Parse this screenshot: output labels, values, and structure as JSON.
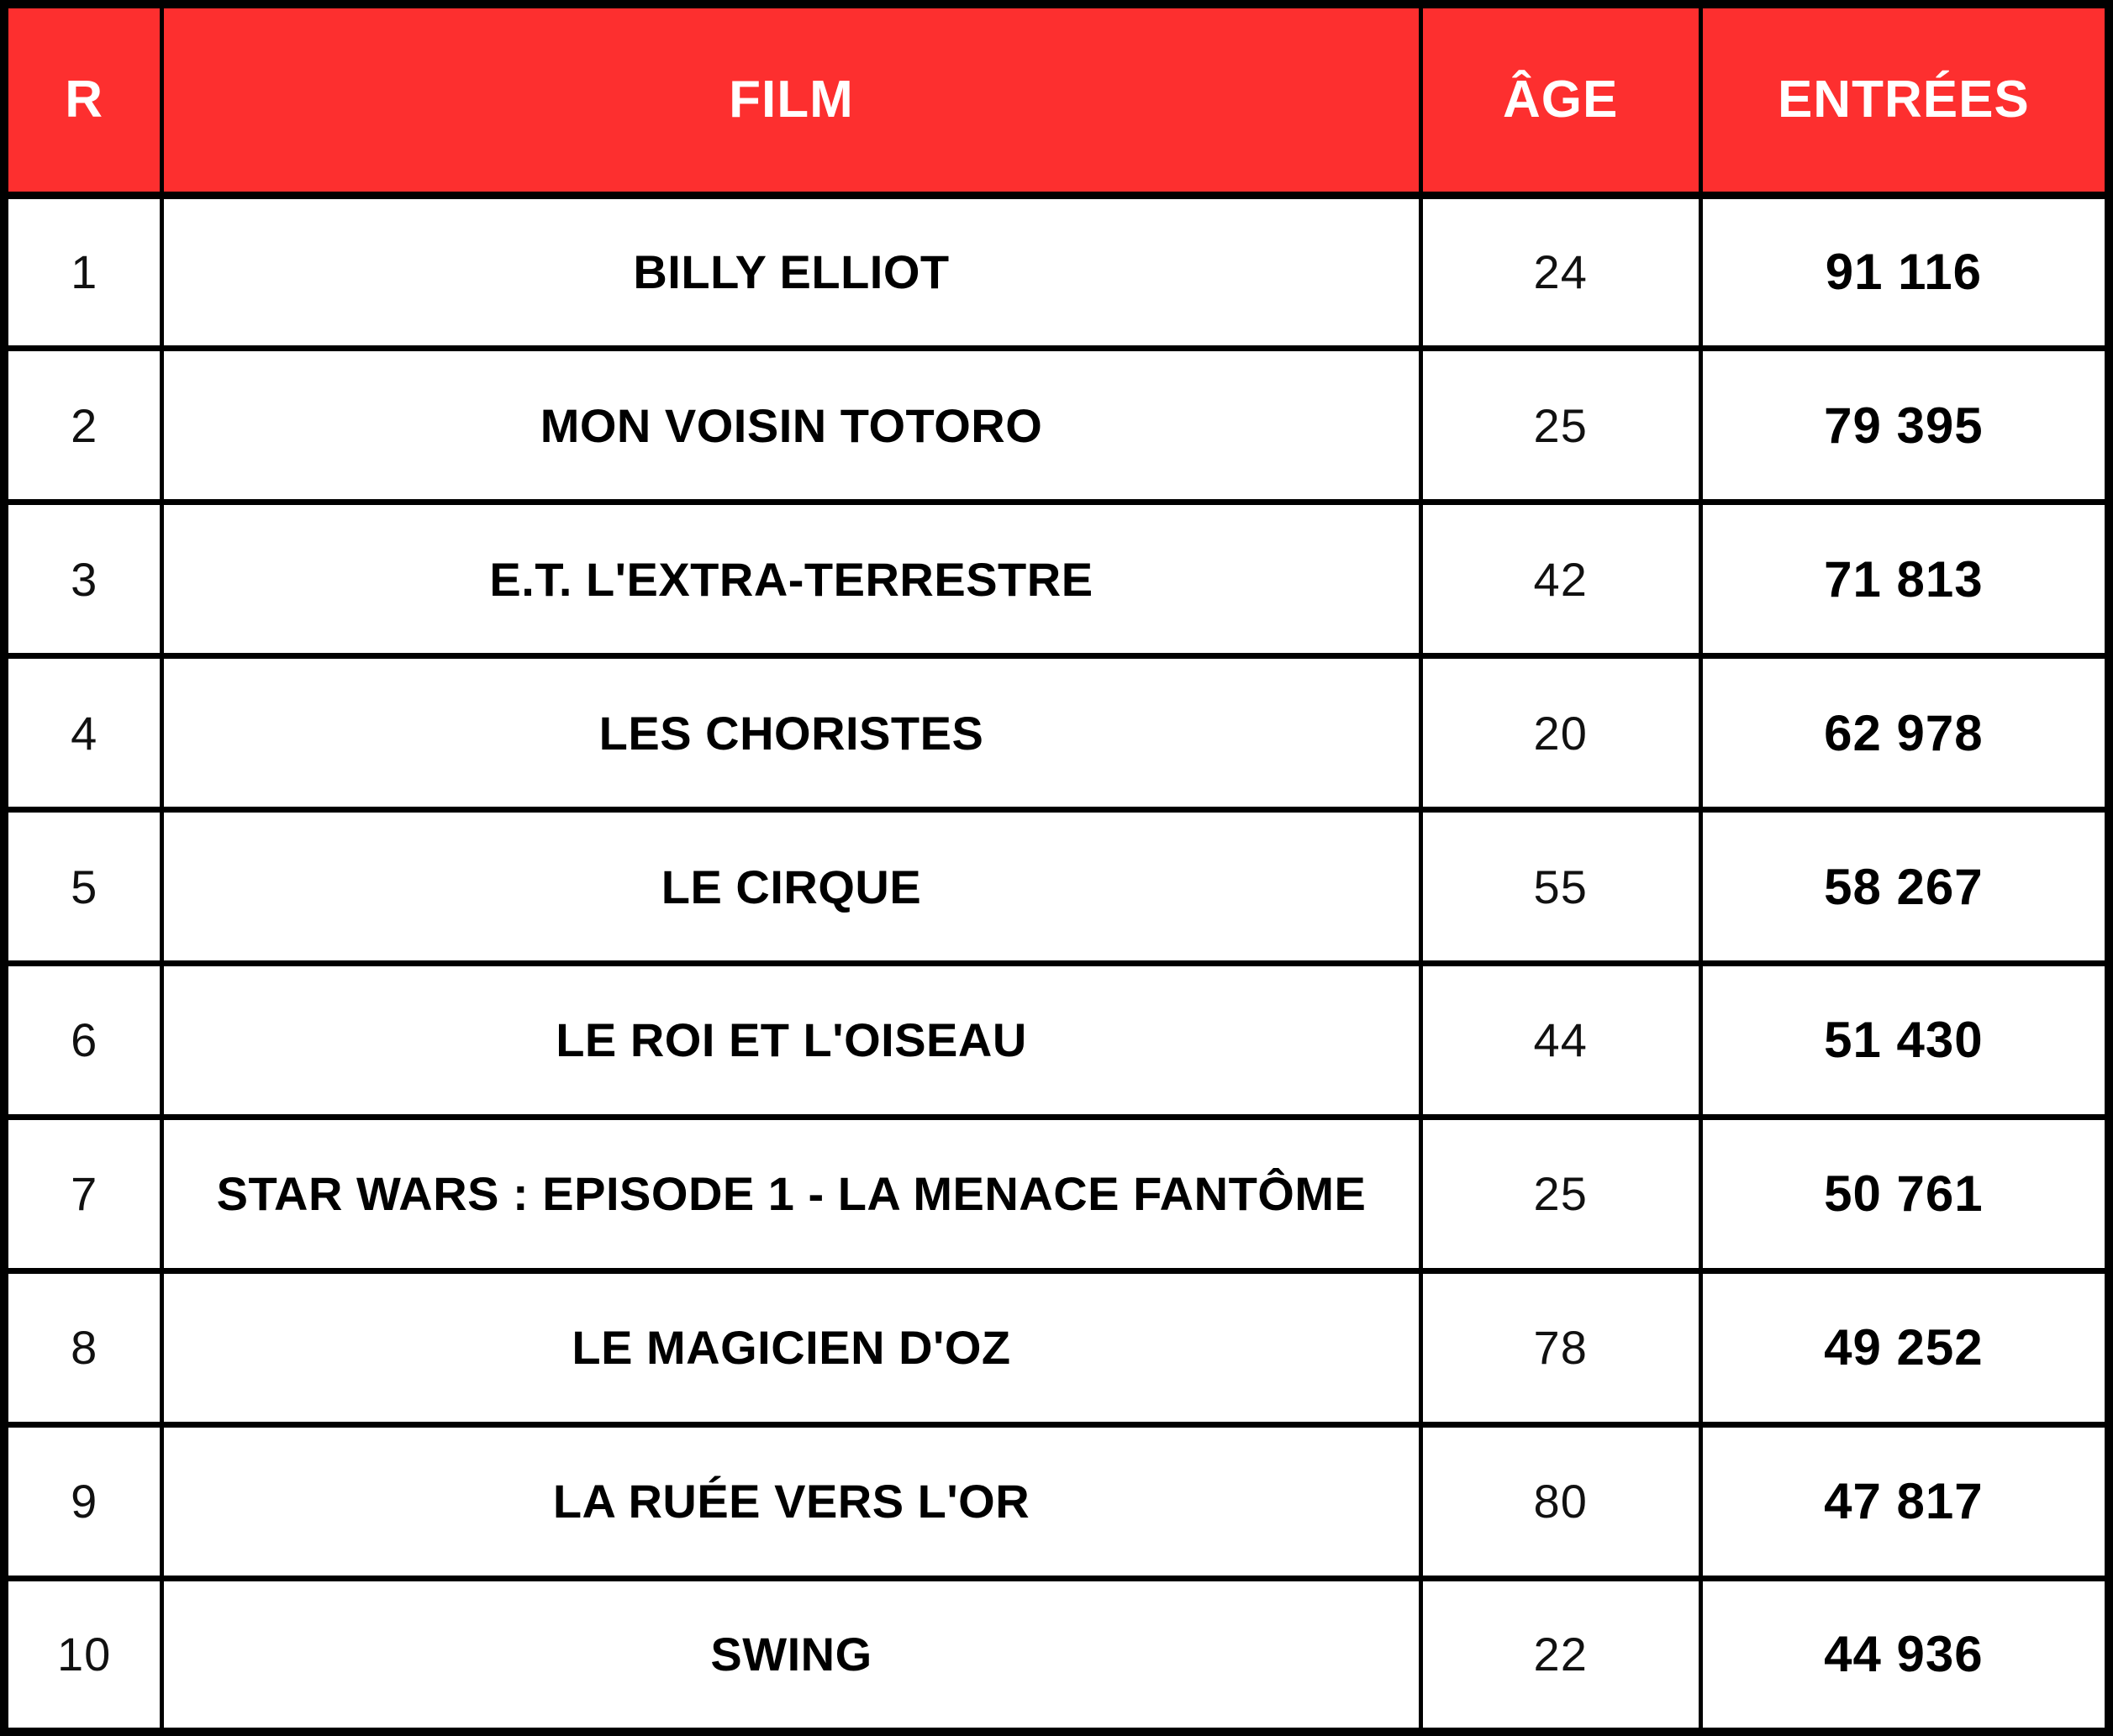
{
  "colors": {
    "header_bg": "#FD2F2F",
    "header_text": "#FFFFFF",
    "border": "#000000",
    "row_bg": "#FFFFFF",
    "cell_text": "#000000"
  },
  "table": {
    "headers": [
      {
        "label": "R"
      },
      {
        "label": "FILM"
      },
      {
        "label": "ÂGE"
      },
      {
        "label": "ENTRÉES"
      }
    ],
    "rows": [
      {
        "rank": "1",
        "film": "BILLY ELLIOT",
        "age": "24",
        "entries": "91 116"
      },
      {
        "rank": "2",
        "film": "MON VOISIN TOTORO",
        "age": "25",
        "entries": "79 395"
      },
      {
        "rank": "3",
        "film": "E.T. L'EXTRA-TERRESTRE",
        "age": "42",
        "entries": "71 813"
      },
      {
        "rank": "4",
        "film": "LES CHORISTES",
        "age": "20",
        "entries": "62 978"
      },
      {
        "rank": "5",
        "film": "LE CIRQUE",
        "age": "55",
        "entries": "58 267"
      },
      {
        "rank": "6",
        "film": "LE ROI ET L'OISEAU",
        "age": "44",
        "entries": "51 430"
      },
      {
        "rank": "7",
        "film": "STAR WARS : EPISODE 1 - LA MENACE FANTÔME",
        "age": "25",
        "entries": "50 761"
      },
      {
        "rank": "8",
        "film": "LE MAGICIEN D'OZ",
        "age": "78",
        "entries": "49 252"
      },
      {
        "rank": "9",
        "film": "LA RUÉE VERS L'OR",
        "age": "80",
        "entries": "47 817"
      },
      {
        "rank": "10",
        "film": "SWING",
        "age": "22",
        "entries": "44 936"
      }
    ]
  },
  "chart_data": {
    "type": "table",
    "title": "",
    "columns": [
      "R",
      "FILM",
      "ÂGE",
      "ENTRÉES"
    ],
    "rows": [
      [
        1,
        "BILLY ELLIOT",
        24,
        91116
      ],
      [
        2,
        "MON VOISIN TOTORO",
        25,
        79395
      ],
      [
        3,
        "E.T. L'EXTRA-TERRESTRE",
        42,
        71813
      ],
      [
        4,
        "LES CHORISTES",
        20,
        62978
      ],
      [
        5,
        "LE CIRQUE",
        55,
        58267
      ],
      [
        6,
        "LE ROI ET L'OISEAU",
        44,
        51430
      ],
      [
        7,
        "STAR WARS : EPISODE 1 - LA MENACE FANTÔME",
        25,
        50761
      ],
      [
        8,
        "LE MAGICIEN D'OZ",
        78,
        49252
      ],
      [
        9,
        "LA RUÉE VERS L'OR",
        80,
        47817
      ],
      [
        10,
        "SWING",
        22,
        44936
      ]
    ],
    "layout": {
      "header_fill": "#FD2F2F",
      "header_text_color": "#FFFFFF",
      "grid": true,
      "value_column_format": "narrow-space thousands separator"
    }
  }
}
